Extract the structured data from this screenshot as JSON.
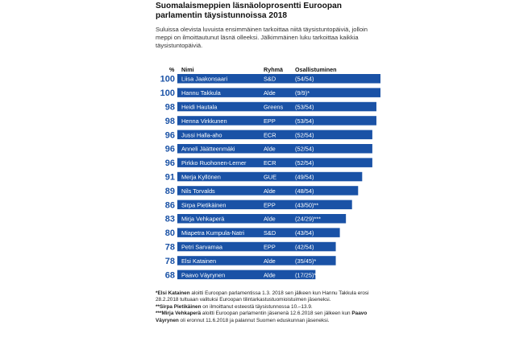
{
  "title": "Suomalaismeppien läsnäoloprosentti Euroopan parlamentin täysistunnoissa 2018",
  "subtitle": "Suluissa olevista luvuista ensimmäinen tarkoittaa niitä täysistuntopäiviä, jolloin meppi on ilmoittautunut läsnä olleeksi. Jälkimmäinen luku tarkoittaa kaikkia täysistuntopäiviä.",
  "headers": {
    "percent": "%",
    "name": "Nimi",
    "group": "Ryhmä",
    "attendance": "Osallistuminen"
  },
  "colors": {
    "bar": "#1a52a6",
    "bar_text": "#ffffff",
    "value_text": "#1a52a6"
  },
  "chart_data": {
    "type": "bar",
    "orientation": "horizontal",
    "value_unit": "%",
    "xlim": [
      0,
      100
    ],
    "rows": [
      {
        "value": 100,
        "name": "Liisa Jaakonsaari",
        "group": "S&D",
        "attendance": "(54/54)"
      },
      {
        "value": 100,
        "name": "Hannu Takkula",
        "group": "Alde",
        "attendance": "(9/9)*"
      },
      {
        "value": 98,
        "name": "Heidi Hautala",
        "group": "Greens",
        "attendance": "(53/54)"
      },
      {
        "value": 98,
        "name": "Henna Virkkunen",
        "group": "EPP",
        "attendance": "(53/54)"
      },
      {
        "value": 96,
        "name": "Jussi Halla-aho",
        "group": "ECR",
        "attendance": "(52/54)"
      },
      {
        "value": 96,
        "name": "Anneli Jäätteenmäki",
        "group": "Alde",
        "attendance": "(52/54)"
      },
      {
        "value": 96,
        "name": "Pirkko Ruohonen-Lerner",
        "group": "ECR",
        "attendance": "(52/54)"
      },
      {
        "value": 91,
        "name": "Merja Kyllönen",
        "group": "GUE",
        "attendance": "(49/54)"
      },
      {
        "value": 89,
        "name": "Nils Torvalds",
        "group": "Alde",
        "attendance": "(48/54)"
      },
      {
        "value": 86,
        "name": "Sirpa Pietikäinen",
        "group": "EPP",
        "attendance": "(43/50)**"
      },
      {
        "value": 83,
        "name": "Mirja Vehkaperä",
        "group": "Alde",
        "attendance": "(24/29)***"
      },
      {
        "value": 80,
        "name": "Miapetra Kumpula-Natri",
        "group": "S&D",
        "attendance": "(43/54)"
      },
      {
        "value": 78,
        "name": "Petri Sarvamaa",
        "group": "EPP",
        "attendance": "(42/54)"
      },
      {
        "value": 78,
        "name": "Elsi Katainen",
        "group": "Alde",
        "attendance": "(35/45)*"
      },
      {
        "value": 68,
        "name": "Paavo Väyrynen",
        "group": "Alde",
        "attendance": "(17/25)***"
      }
    ]
  },
  "footnotes": [
    {
      "bold": "*Elsi Katainen",
      "text": " aloitti Euroopan parlamentissa 1.3. 2018 sen jälkeen kun Hannu Takkula erosi 28.2.2018 tultuaan valituksi Euroopan tilintarkastustuomioistuimen jäseneksi."
    },
    {
      "bold": "**Sirpa Pietikäinen",
      "text": " on ilmoittanut esteestä täysistunnossa 10.–13.9."
    },
    {
      "bold": "***Mirja Vehkaperä",
      "text": " aloitti Euroopan parlamentin jäsenenä 12.6.2018 sen jälkeen kun "
    },
    {
      "bold": "Paavo Väyrynen",
      "text": " oli eronnut 11.6.2018 ja palannut Suomen eduskunnan jäseneksi."
    }
  ]
}
